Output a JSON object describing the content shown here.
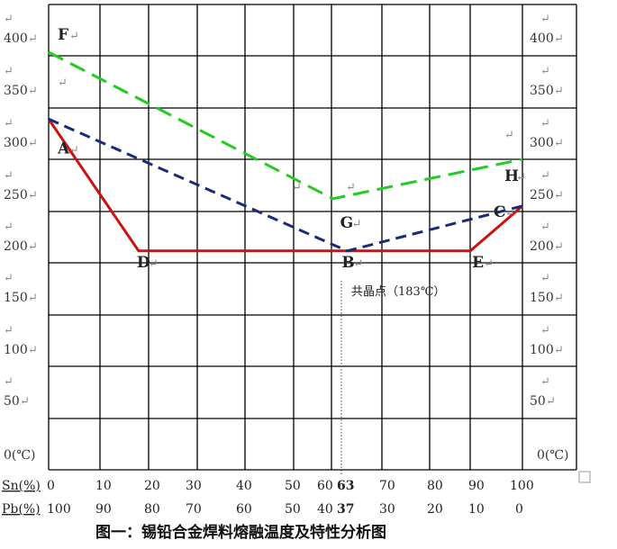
{
  "colors": {
    "liquidus": "#cc1111",
    "mid": "#1b2a78",
    "upper": "#22cc22",
    "grid": "#000000"
  },
  "chart_data": {
    "type": "line",
    "title": "图一：锡铅合金焊料熔融温度及特性分析图",
    "xlabel_sn": "Sn(%)",
    "xlabel_pb": "Pb(%)",
    "ylabel_unit": "0(℃)",
    "ylim": [
      0,
      400
    ],
    "xlim": [
      0,
      100
    ],
    "y_ticks": [
      "400",
      "350",
      "300",
      "250",
      "200",
      "150",
      "100",
      "50"
    ],
    "sn_ticks": [
      "0",
      "10",
      "20",
      "30",
      "40",
      "50",
      "60",
      "63",
      "70",
      "80",
      "90",
      "100"
    ],
    "pb_ticks": [
      "100",
      "90",
      "80",
      "70",
      "60",
      "50",
      "40",
      "37",
      "30",
      "20",
      "10",
      "0"
    ],
    "tick_values": [
      0,
      10,
      20,
      30,
      40,
      50,
      60,
      63,
      70,
      80,
      90,
      100
    ],
    "eutectic_note": "共晶点（183℃）",
    "return_mark": "↵",
    "series": [
      {
        "style": "solid",
        "color": "#cc1111",
        "points": [
          {
            "x": 0,
            "y": 327
          },
          {
            "x": 19,
            "y": 183
          },
          {
            "x": 63,
            "y": 183
          },
          {
            "x": 89,
            "y": 183
          },
          {
            "x": 100,
            "y": 232
          }
        ]
      },
      {
        "style": "dashed",
        "color": "#1b2a78",
        "points": [
          {
            "x": 0,
            "y": 327
          },
          {
            "x": 63,
            "y": 183
          },
          {
            "x": 100,
            "y": 232
          }
        ]
      },
      {
        "style": "dashed",
        "color": "#22cc22",
        "points": [
          {
            "x": 0,
            "y": 400
          },
          {
            "x": 60,
            "y": 240
          },
          {
            "x": 100,
            "y": 283
          }
        ]
      }
    ],
    "point_labels": [
      {
        "label": "F",
        "x": 0,
        "y": 400
      },
      {
        "label": "A",
        "x": 0,
        "y": 327
      },
      {
        "label": "D",
        "x": 19,
        "y": 183
      },
      {
        "label": "B",
        "x": 63,
        "y": 183
      },
      {
        "label": "E",
        "x": 89,
        "y": 183
      },
      {
        "label": "C",
        "x": 100,
        "y": 232
      },
      {
        "label": "G",
        "x": 60,
        "y": 240
      },
      {
        "label": "H",
        "x": 100,
        "y": 283
      }
    ]
  }
}
